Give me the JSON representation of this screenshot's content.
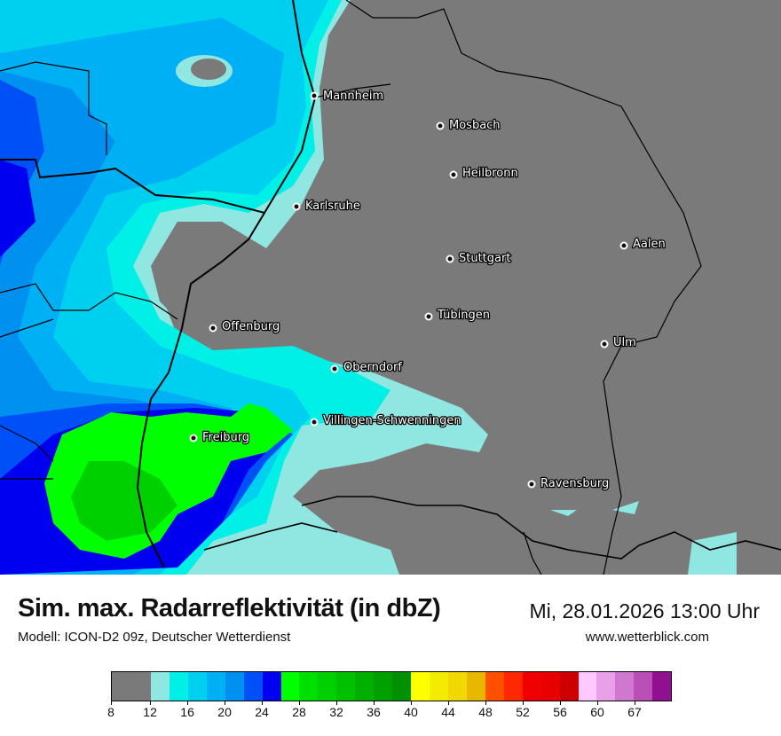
{
  "header": {
    "title": "Sim. max. Radarreflektivität (in dbZ)",
    "datetime": "Mi, 28.01.2026 13:00 Uhr",
    "subtitle": "Modell: ICON-D2 09z, Deutscher Wetterdienst",
    "website": "www.wetterblick.com"
  },
  "map": {
    "land_color": "#7a7a7a",
    "cities": [
      "Mannheim",
      "Mosbach",
      "Heilbronn",
      "Karlsruhe",
      "Aalen",
      "Stuttgart",
      "Tübingen",
      "Offenburg",
      "Ulm",
      "Oberndorf",
      "Villingen-Schwenningen",
      "Freiburg",
      "Ravensburg"
    ]
  },
  "legend": {
    "unit": "dbZ",
    "colors": [
      "#7a7a7a",
      "#90e6e0",
      "#00f0e8",
      "#00d0f0",
      "#00b0f4",
      "#0090f0",
      "#0050f8",
      "#0000f0",
      "#00ff00",
      "#00e000",
      "#00d000",
      "#00c000",
      "#00b000",
      "#00a000",
      "#009000",
      "#ffff00",
      "#f4ec00",
      "#f0d800",
      "#e8b800",
      "#ff5000",
      "#ff2800",
      "#f00000",
      "#e80000",
      "#cc0000",
      "#ffc8ff",
      "#e8a0e8",
      "#d078d0",
      "#b850b8",
      "#901090"
    ],
    "ticks": [
      "8",
      "12",
      "16",
      "20",
      "24",
      "28",
      "32",
      "36",
      "40",
      "44",
      "48",
      "52",
      "56",
      "60",
      "67"
    ]
  }
}
